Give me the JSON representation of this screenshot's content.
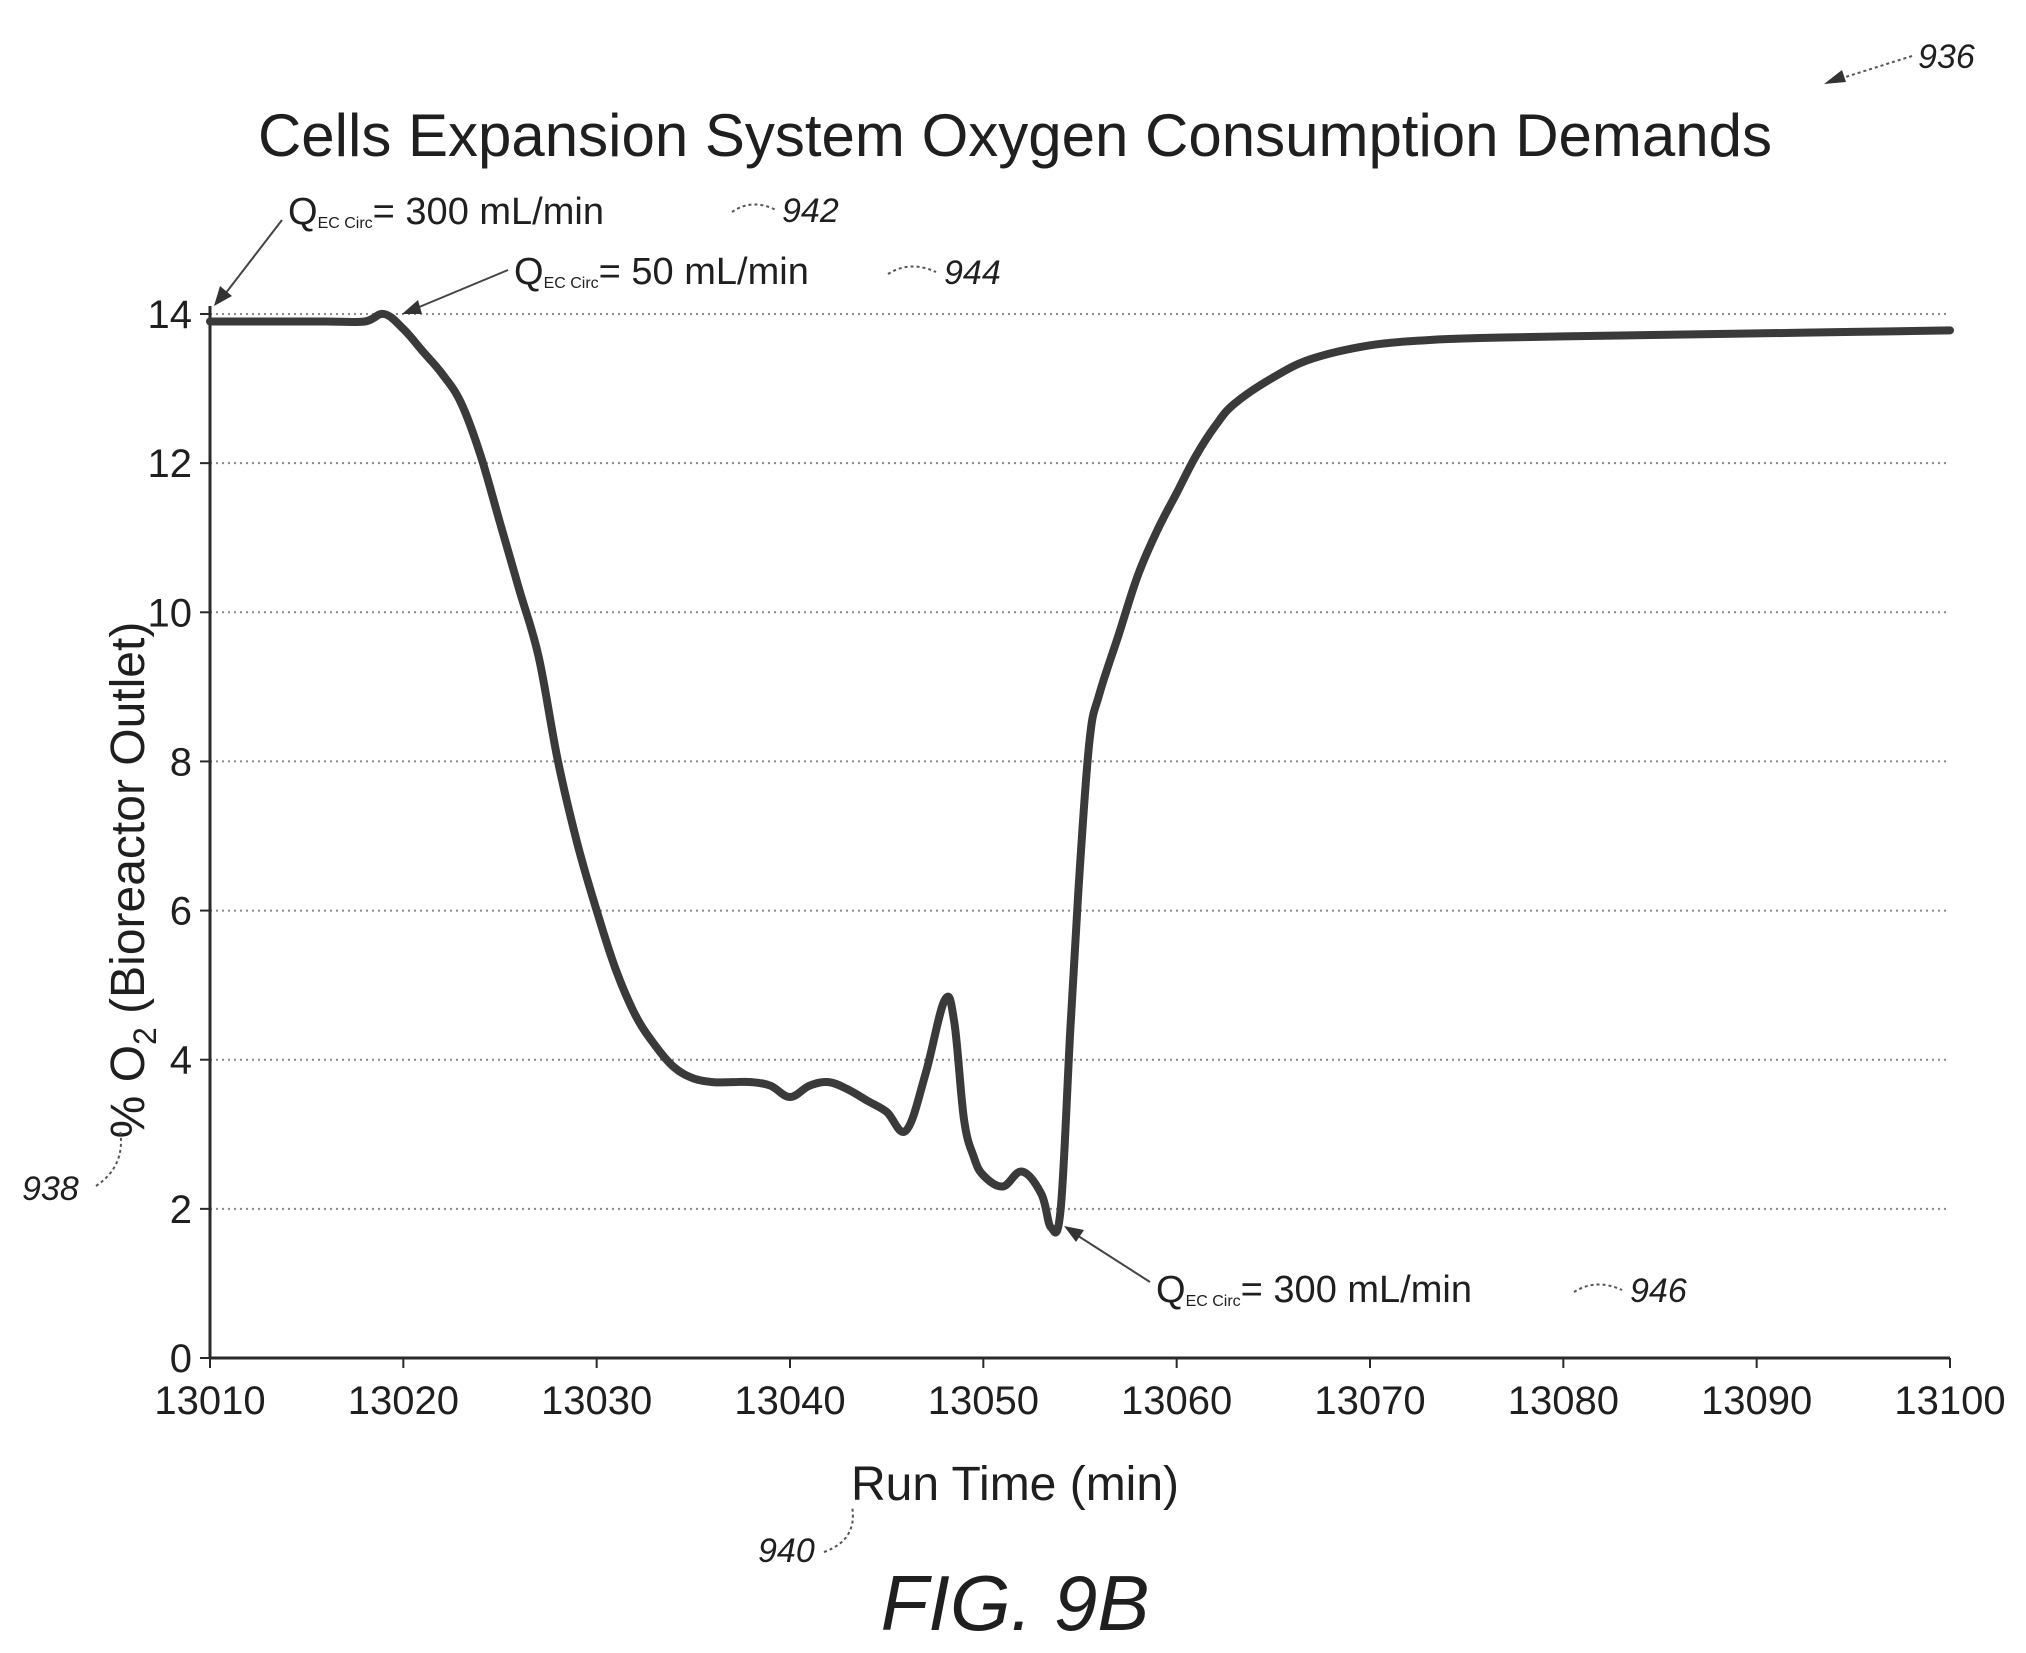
{
  "chart_data": {
    "type": "line",
    "title": "Cells Expansion System Oxygen Consumption Demands",
    "xlabel": "Run Time (min)",
    "ylabel": "% O2 (Bioreactor Outlet)",
    "ylabel_main": "% O",
    "ylabel_sub": "2",
    "ylabel_rest": " (Bioreactor Outlet)",
    "xlim": [
      13010,
      13100
    ],
    "ylim": [
      0,
      14
    ],
    "xticks": [
      "13010",
      "13020",
      "13030",
      "13040",
      "13050",
      "13060",
      "13070",
      "13080",
      "13090",
      "13100"
    ],
    "yticks": [
      "0",
      "2",
      "4",
      "6",
      "8",
      "10",
      "12",
      "14"
    ],
    "grid": true,
    "series": [
      {
        "x": [
          13010,
          13012,
          13014,
          13016,
          13018,
          13019,
          13020,
          13021,
          13022,
          13023,
          13024,
          13025,
          13026,
          13027,
          13028,
          13029,
          13030,
          13031,
          13032,
          13033,
          13034,
          13035,
          13036,
          13037,
          13038,
          13039,
          13040,
          13041,
          13042,
          13043,
          13044,
          13045,
          13046,
          13047,
          13048,
          13048.5,
          13049,
          13049.5,
          13050,
          13051,
          13052,
          13053,
          13053.5,
          13054,
          13054.5,
          13055,
          13055.5,
          13056,
          13057,
          13058,
          13059,
          13060,
          13061,
          13062,
          13063,
          13065,
          13067,
          13070,
          13073,
          13076,
          13080,
          13085,
          13090,
          13095,
          13100
        ],
        "y": [
          13.9,
          13.9,
          13.9,
          13.9,
          13.9,
          14.0,
          13.8,
          13.5,
          13.2,
          12.8,
          12.1,
          11.2,
          10.3,
          9.4,
          8.0,
          6.9,
          6.0,
          5.2,
          4.6,
          4.2,
          3.9,
          3.75,
          3.7,
          3.7,
          3.7,
          3.65,
          3.5,
          3.65,
          3.7,
          3.6,
          3.45,
          3.3,
          3.05,
          3.8,
          4.8,
          4.5,
          3.2,
          2.7,
          2.45,
          2.3,
          2.5,
          2.2,
          1.75,
          2.0,
          4.4,
          6.6,
          8.3,
          8.9,
          9.7,
          10.5,
          11.1,
          11.6,
          12.1,
          12.5,
          12.8,
          13.15,
          13.4,
          13.58,
          13.65,
          13.68,
          13.7,
          13.72,
          13.74,
          13.76,
          13.78
        ]
      }
    ],
    "annotations": [
      {
        "label": "Q",
        "sub": "EC Circ",
        "text": "= 300 mL/min",
        "ref": "942",
        "x": 13010,
        "y": 13.9
      },
      {
        "label": "Q",
        "sub": "EC Circ",
        "text": "= 50 mL/min",
        "ref": "944",
        "x": 13019,
        "y": 14.0
      },
      {
        "label": "Q",
        "sub": "EC Circ",
        "text": "= 300 mL/min",
        "ref": "946",
        "x": 13054,
        "y": 1.75
      }
    ],
    "reference_labels": {
      "figure": "936",
      "y_axis": "938",
      "x_axis": "940"
    },
    "caption": "FIG. 9B"
  }
}
